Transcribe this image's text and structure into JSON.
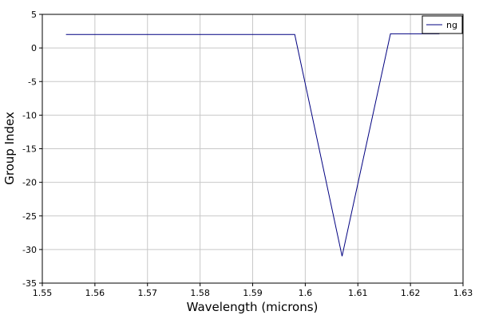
{
  "chart_data": {
    "type": "line",
    "title": "",
    "xlabel": "Wavelength (microns)",
    "ylabel": "Group Index",
    "xlim": [
      1.55,
      1.63
    ],
    "ylim": [
      -35,
      5
    ],
    "xticks": [
      1.55,
      1.56,
      1.57,
      1.58,
      1.59,
      1.6,
      1.61,
      1.62,
      1.63
    ],
    "xtick_labels": [
      "1.55",
      "1.56",
      "1.57",
      "1.58",
      "1.59",
      "1.6",
      "1.61",
      "1.62",
      "1.63"
    ],
    "yticks": [
      5,
      0,
      -5,
      -10,
      -15,
      -20,
      -25,
      -30,
      -35
    ],
    "ytick_labels": [
      "5",
      "0",
      "-5",
      "-10",
      "-15",
      "-20",
      "-25",
      "-30",
      "-35"
    ],
    "grid": true,
    "legend": {
      "position": "top-right"
    },
    "series": [
      {
        "name": "ng",
        "color": "#000080",
        "x": [
          1.5545,
          1.598,
          1.607,
          1.6162,
          1.6255
        ],
        "y": [
          2.0,
          2.0,
          -31.0,
          2.1,
          2.1
        ]
      }
    ]
  }
}
